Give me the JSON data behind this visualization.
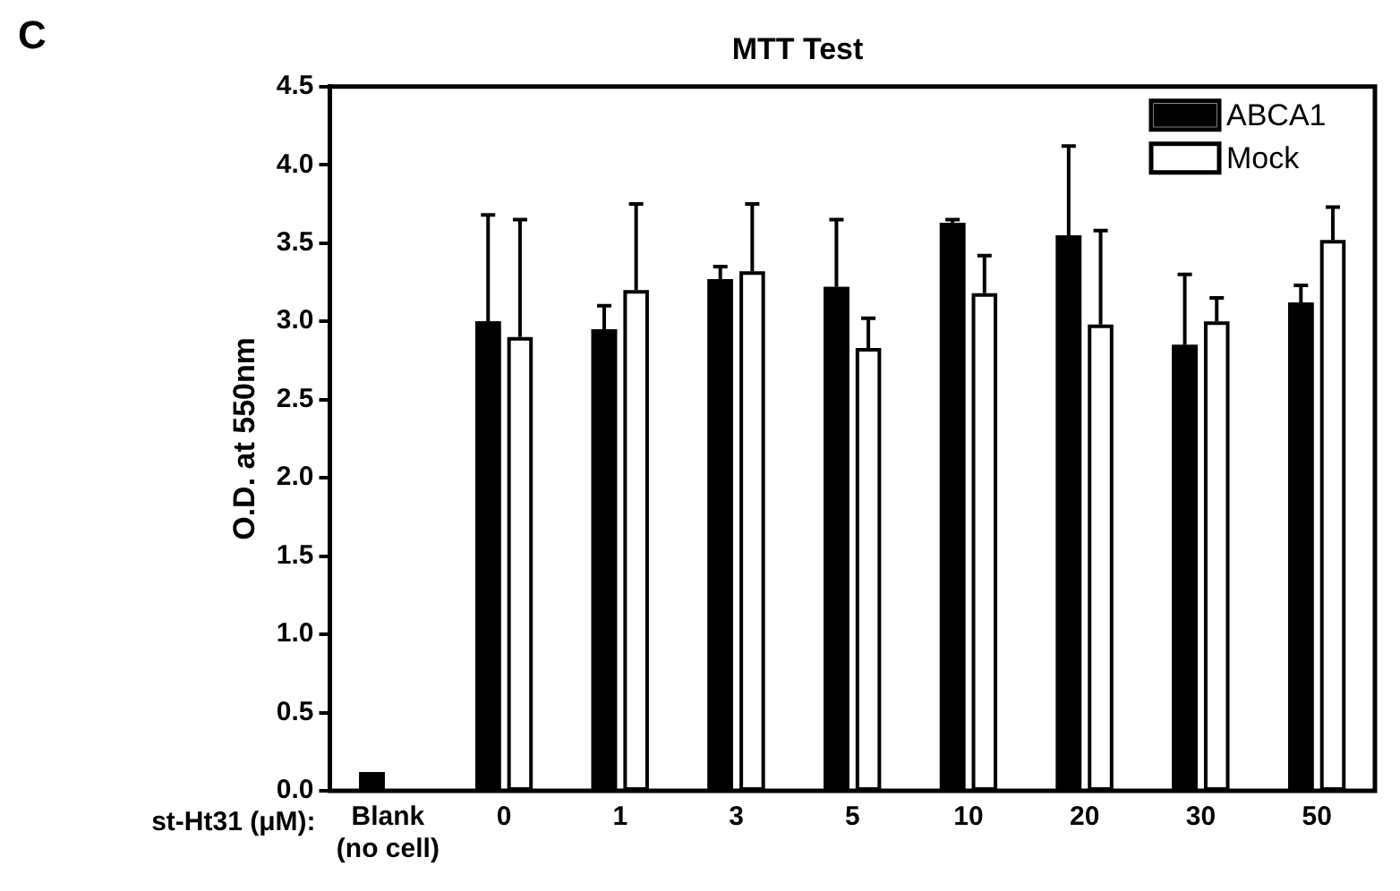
{
  "chart_data": {
    "type": "bar",
    "title": "MTT Test",
    "xlabel": "st-Ht31 (μM):",
    "ylabel": "O.D. at 550nm",
    "annotations": [
      "C"
    ],
    "categories": [
      "Blank (no cell)",
      "0",
      "1",
      "3",
      "5",
      "10",
      "20",
      "30",
      "50"
    ],
    "series": [
      {
        "name": "ABCA1",
        "color": "#000000",
        "values": [
          0.12,
          3.0,
          2.95,
          3.27,
          3.22,
          3.63,
          3.55,
          2.85,
          3.12
        ],
        "errors": [
          null,
          [
            3.0,
            3.68
          ],
          [
            2.95,
            3.1
          ],
          [
            3.27,
            3.35
          ],
          [
            3.22,
            3.65
          ],
          [
            3.63,
            3.65
          ],
          [
            3.55,
            4.12
          ],
          [
            2.85,
            3.3
          ],
          [
            3.12,
            3.23
          ]
        ]
      },
      {
        "name": "Mock",
        "color": "#ffffff",
        "values": [
          null,
          2.9,
          3.2,
          3.32,
          2.83,
          3.18,
          2.98,
          3.0,
          3.52
        ],
        "errors": [
          null,
          [
            2.9,
            3.65
          ],
          [
            3.2,
            3.75
          ],
          [
            3.32,
            3.75
          ],
          [
            2.83,
            3.02
          ],
          [
            3.18,
            3.42
          ],
          [
            2.98,
            3.58
          ],
          [
            3.0,
            3.15
          ],
          [
            3.52,
            3.73
          ]
        ]
      }
    ],
    "ylim": [
      0,
      4.5
    ],
    "yticks": [
      {
        "value": 0,
        "label": "0.0"
      },
      0.5,
      {
        "value": 1,
        "label": "1.0"
      },
      1.5,
      {
        "value": 2,
        "label": "2.0"
      },
      2.5,
      {
        "value": 3,
        "label": "3.0"
      },
      3.5,
      {
        "value": 4,
        "label": "4.0"
      },
      4.5
    ],
    "grid": false,
    "legend": "top right"
  }
}
